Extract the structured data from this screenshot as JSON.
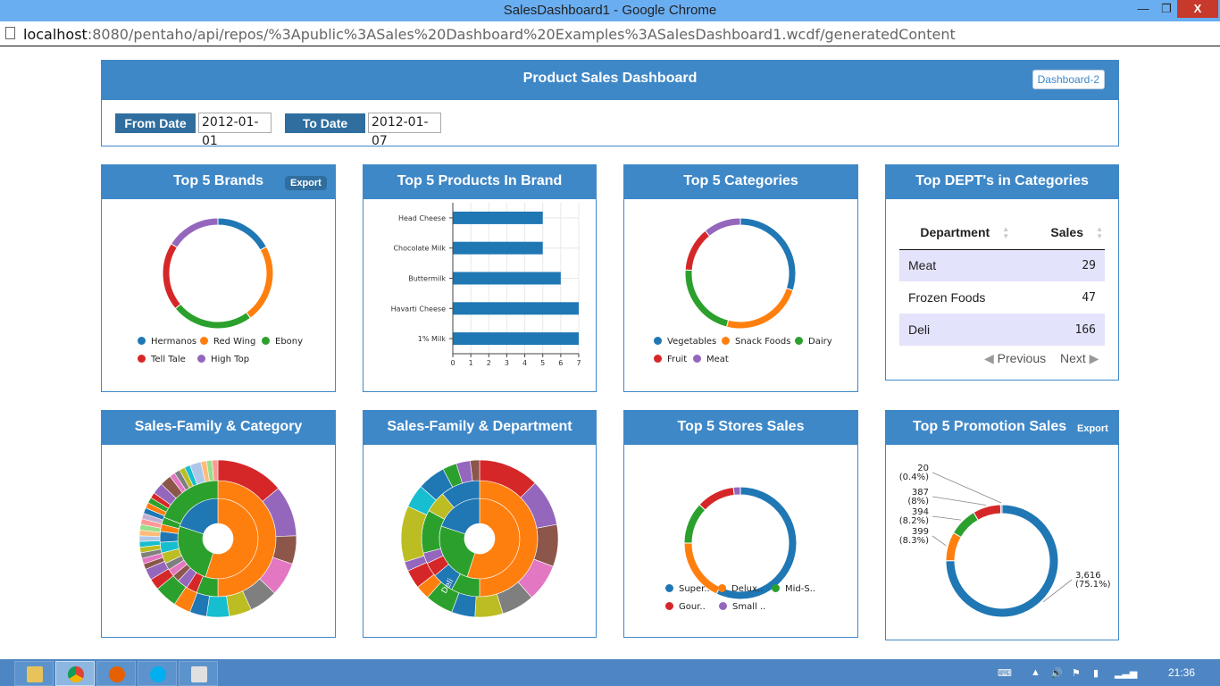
{
  "window": {
    "title": "SalesDashboard1 - Google Chrome",
    "min_label": "—",
    "max_label": "❐",
    "close_label": "X"
  },
  "url": {
    "host": "localhost",
    "rest": ":8080/pentaho/api/repos/%3Apublic%3ASales%20Dashboard%20Examples%3ASalesDashboard1.wcdf/generatedContent"
  },
  "dashboard": {
    "title": "Product Sales Dashboard",
    "dashboard2_label": "Dashboard-2",
    "from_label": "From Date",
    "from_value": "2012-01-01",
    "to_label": "To Date",
    "to_value": "2012-01-07"
  },
  "panels": {
    "brands": {
      "title": "Top 5 Brands",
      "export": "Export"
    },
    "products": {
      "title": "Top 5 Products In Brand"
    },
    "categories": {
      "title": "Top 5 Categories"
    },
    "depts": {
      "title": "Top DEPT's in Categories"
    },
    "family_cat": {
      "title": "Sales-Family & Category"
    },
    "family_dept": {
      "title": "Sales-Family & Department"
    },
    "stores": {
      "title": "Top 5 Stores Sales"
    },
    "promos": {
      "title": "Top 5 Promotion Sales",
      "export": "Export"
    }
  },
  "colors": {
    "blue": "#1f77b4",
    "orange": "#ff7f0e",
    "green": "#2ca02c",
    "red": "#d62728",
    "purple": "#9467bd",
    "brown": "#8c564b",
    "pink": "#e377c2",
    "gray": "#7f7f7f",
    "olive": "#bcbd22",
    "cyan": "#17becf",
    "header": "#3f88c8"
  },
  "dept_table": {
    "headers": [
      "Department",
      "Sales"
    ],
    "rows": [
      {
        "department": "Meat",
        "sales": "29"
      },
      {
        "department": "Frozen Foods",
        "sales": "47"
      },
      {
        "department": "Deli",
        "sales": "166"
      }
    ],
    "previous": "Previous",
    "next": "Next"
  },
  "sunburst_label": "Deli",
  "promo_labels": [
    {
      "value": "20",
      "pct": "(0.4%)"
    },
    {
      "value": "387",
      "pct": "(8%)"
    },
    {
      "value": "394",
      "pct": "(8.2%)"
    },
    {
      "value": "399",
      "pct": "(8.3%)"
    },
    {
      "value": "3,616",
      "pct": "(75.1%)"
    }
  ],
  "taskbar": {
    "clock": "21:36"
  },
  "chart_data": [
    {
      "type": "pie",
      "title": "Top 5 Brands",
      "labels": [
        "Hermanos",
        "Red Wing",
        "Ebony",
        "Tell Tale",
        "High Top"
      ],
      "values": [
        17,
        23,
        24,
        20,
        16
      ],
      "colors": [
        "#1f77b4",
        "#ff7f0e",
        "#2ca02c",
        "#d62728",
        "#9467bd"
      ],
      "legend": "bottom"
    },
    {
      "type": "bar",
      "title": "Top 5 Products In Brand",
      "categories": [
        "Head Cheese",
        "Chocolate Milk",
        "Buttermilk",
        "Havarti Cheese",
        "1% Milk"
      ],
      "values": [
        5,
        5,
        6,
        7,
        7
      ],
      "xlim": [
        0,
        7
      ],
      "xticks": [
        "0",
        "1",
        "2",
        "3",
        "4",
        "5",
        "6",
        "7"
      ],
      "grid": true
    },
    {
      "type": "pie",
      "title": "Top 5 Categories",
      "labels": [
        "Vegetables",
        "Snack Foods",
        "Dairy",
        "Fruit",
        "Meat"
      ],
      "values": [
        30,
        24,
        22,
        13,
        11
      ],
      "colors": [
        "#1f77b4",
        "#ff7f0e",
        "#2ca02c",
        "#d62728",
        "#9467bd"
      ],
      "legend": "bottom"
    },
    {
      "type": "pie",
      "title": "Top 5 Stores Sales",
      "labels": [
        "Super..",
        "Delux..",
        "Mid-S..",
        "Gour..",
        "Small .."
      ],
      "values": [
        57,
        18,
        12,
        11,
        2
      ],
      "colors": [
        "#1f77b4",
        "#ff7f0e",
        "#2ca02c",
        "#d62728",
        "#9467bd"
      ],
      "legend": "bottom"
    },
    {
      "type": "pie",
      "title": "Top 5 Promotion Sales",
      "values": [
        3616,
        399,
        394,
        387,
        20
      ],
      "colors": [
        "#1f77b4",
        "#ff7f0e",
        "#2ca02c",
        "#d62728",
        "#9467bd"
      ]
    }
  ]
}
